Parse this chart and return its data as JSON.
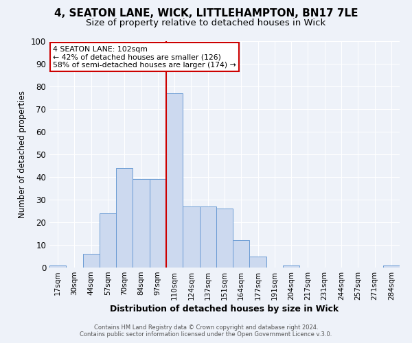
{
  "title1": "4, SEATON LANE, WICK, LITTLEHAMPTON, BN17 7LE",
  "title2": "Size of property relative to detached houses in Wick",
  "xlabel": "Distribution of detached houses by size in Wick",
  "ylabel": "Number of detached properties",
  "bar_labels": [
    "17sqm",
    "30sqm",
    "44sqm",
    "57sqm",
    "70sqm",
    "84sqm",
    "97sqm",
    "110sqm",
    "124sqm",
    "137sqm",
    "151sqm",
    "164sqm",
    "177sqm",
    "191sqm",
    "204sqm",
    "217sqm",
    "231sqm",
    "244sqm",
    "257sqm",
    "271sqm",
    "284sqm"
  ],
  "bar_heights": [
    1,
    0,
    6,
    24,
    44,
    39,
    39,
    77,
    27,
    27,
    26,
    12,
    5,
    0,
    1,
    0,
    0,
    0,
    0,
    0,
    1
  ],
  "bar_color": "#ccd9ef",
  "bar_edge_color": "#6a9bd4",
  "vline_color": "#cc0000",
  "ylim": [
    0,
    100
  ],
  "yticks": [
    0,
    10,
    20,
    30,
    40,
    50,
    60,
    70,
    80,
    90,
    100
  ],
  "annotation_title": "4 SEATON LANE: 102sqm",
  "annotation_line1": "← 42% of detached houses are smaller (126)",
  "annotation_line2": "58% of semi-detached houses are larger (174) →",
  "annotation_box_color": "#ffffff",
  "annotation_box_edge": "#cc0000",
  "footer1": "Contains HM Land Registry data © Crown copyright and database right 2024.",
  "footer2": "Contains public sector information licensed under the Open Government Licence v.3.0.",
  "bg_color": "#eef2f9",
  "grid_color": "#ffffff",
  "title1_fontsize": 11,
  "title2_fontsize": 9.5
}
